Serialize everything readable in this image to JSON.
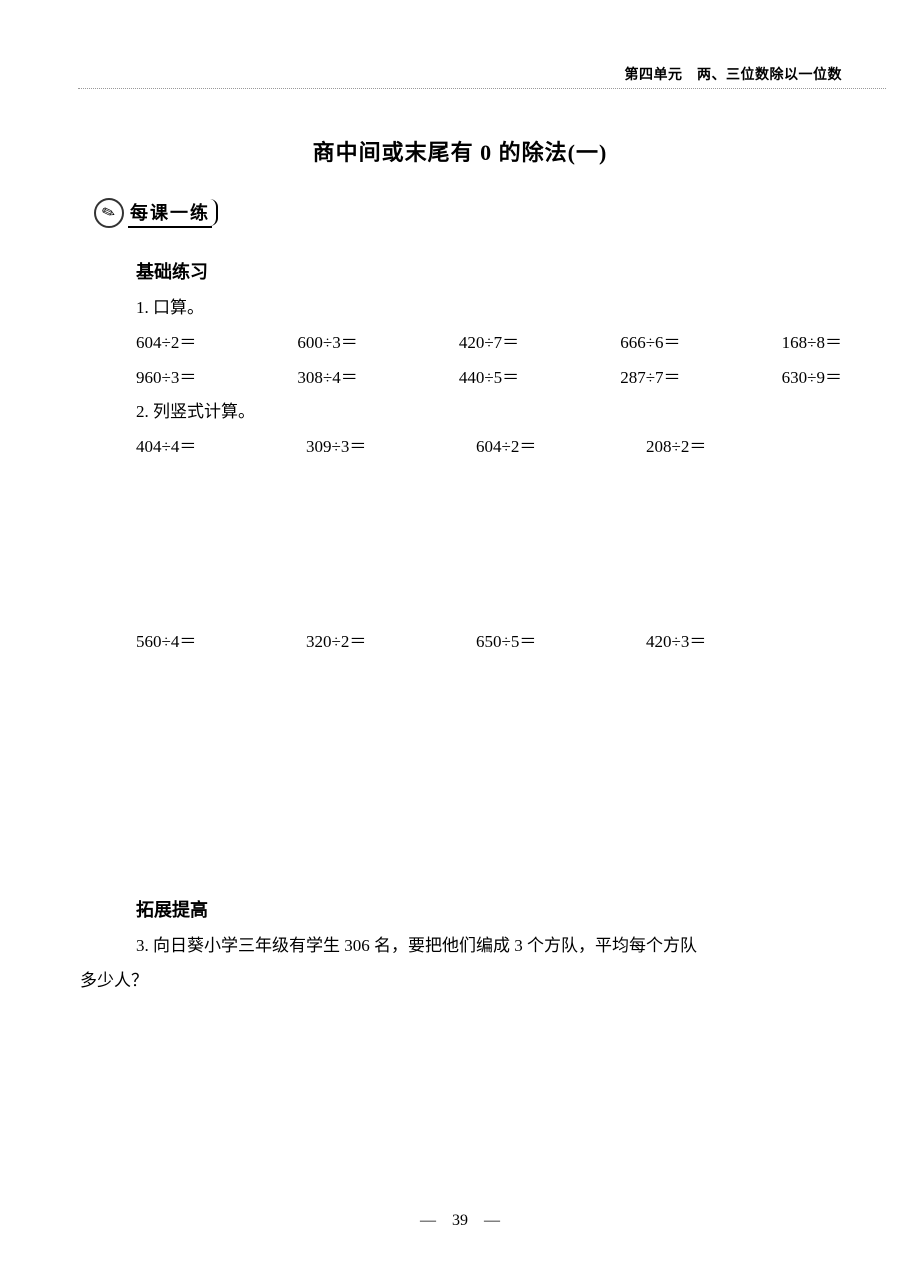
{
  "header_unit": "第四单元　两、三位数除以一位数",
  "page_title": "商中间或末尾有 0 的除法(一)",
  "badge_label": "每课一练",
  "section1_heading": "基础练习",
  "q1_label": "1. 口算。",
  "q1_row1": [
    "604÷2＝",
    "600÷3＝",
    "420÷7＝",
    "666÷6＝",
    "168÷8＝"
  ],
  "q1_row2": [
    "960÷3＝",
    "308÷4＝",
    "440÷5＝",
    "287÷7＝",
    "630÷9＝"
  ],
  "q2_label": "2. 列竖式计算。",
  "q2_row1": [
    "404÷4＝",
    "309÷3＝",
    "604÷2＝",
    "208÷2＝"
  ],
  "q2_row2": [
    "560÷4＝",
    "320÷2＝",
    "650÷5＝",
    "420÷3＝"
  ],
  "section2_heading": "拓展提高",
  "q3_line1": "3. 向日葵小学三年级有学生 306 名，要把他们编成 3 个方队，平均每个方队",
  "q3_line2": "多少人？",
  "page_number": "—　39　—"
}
